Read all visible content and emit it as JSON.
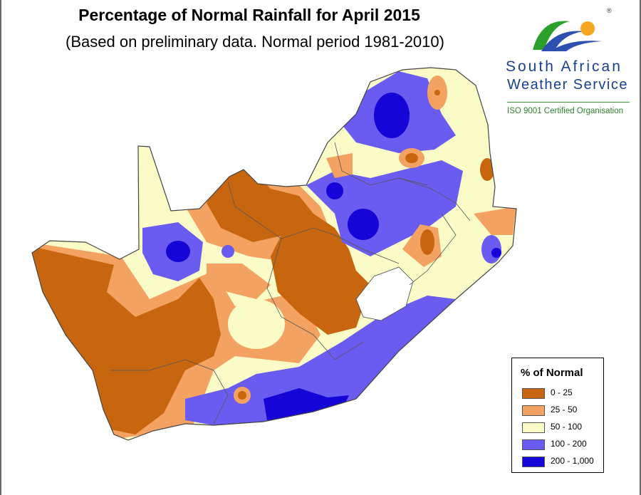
{
  "title": "Percentage of Normal Rainfall for April 2015",
  "subtitle": "(Based on preliminary data. Normal period 1981-2010)",
  "logo": {
    "name_line1": "South African",
    "name_line2": "Weather Service",
    "certification": "ISO 9001 Certified Organisation",
    "registered_mark": "®"
  },
  "legend": {
    "title": "% of Normal",
    "classes": [
      {
        "label": "0 - 25",
        "color": "#c8650f"
      },
      {
        "label": "25 - 50",
        "color": "#f4a261"
      },
      {
        "label": "50 - 100",
        "color": "#fbfbc8"
      },
      {
        "label": "100 - 200",
        "color": "#6a5cf0"
      },
      {
        "label": "200 - 1,000",
        "color": "#1505d6"
      }
    ]
  },
  "colors": {
    "outline": "#444444",
    "water": "#ffffff"
  }
}
